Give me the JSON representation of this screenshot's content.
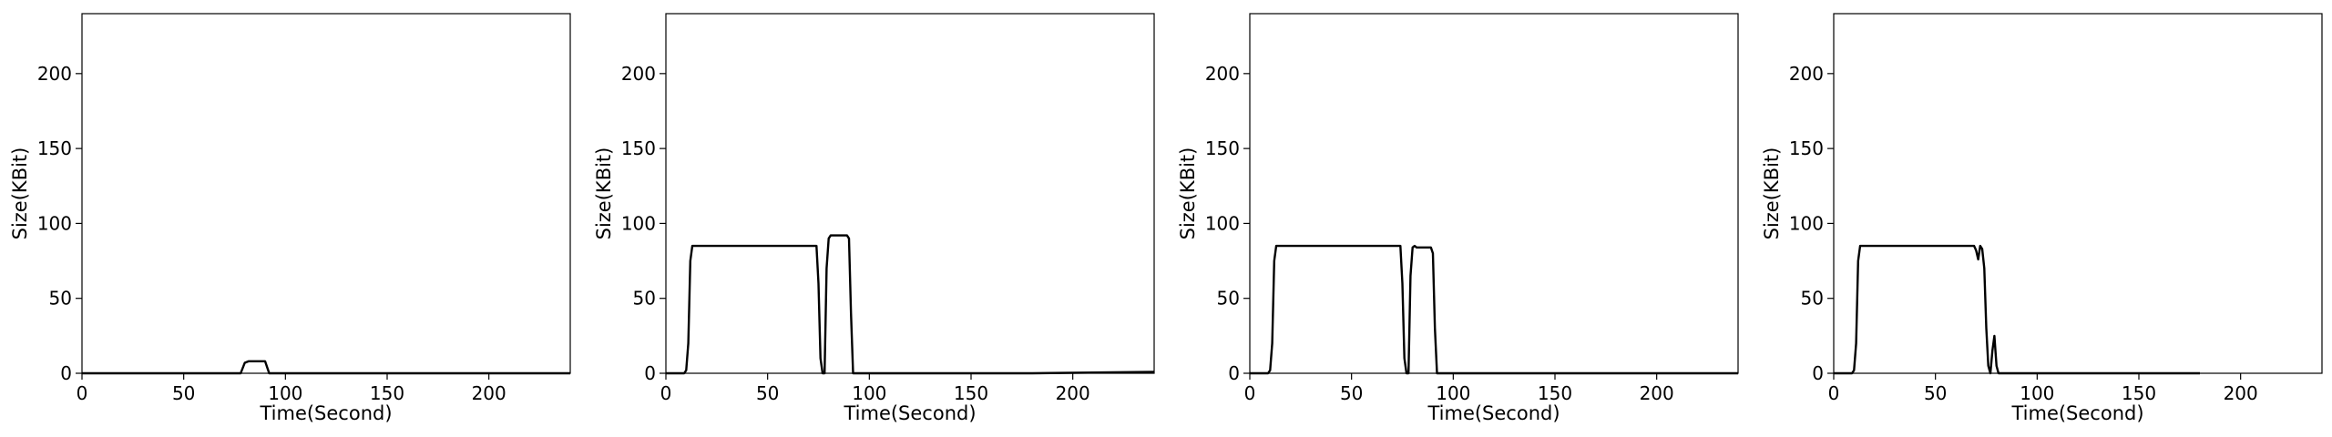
{
  "chart_data": [
    {
      "type": "line",
      "xlabel": "Time(Second)",
      "ylabel": "Size(KBit)",
      "xlim": [
        0,
        240
      ],
      "ylim": [
        0,
        240
      ],
      "xticks": [
        0,
        50,
        100,
        150,
        200
      ],
      "yticks": [
        0,
        50,
        100,
        150,
        200
      ],
      "grid": false,
      "series": [
        {
          "x": [
            0,
            78,
            80,
            82,
            90,
            92,
            240
          ],
          "y": [
            0,
            0,
            7,
            8,
            8,
            0,
            0
          ]
        }
      ]
    },
    {
      "type": "line",
      "xlabel": "Time(Second)",
      "ylabel": "Size(KBit)",
      "xlim": [
        0,
        240
      ],
      "ylim": [
        0,
        240
      ],
      "xticks": [
        0,
        50,
        100,
        150,
        200
      ],
      "yticks": [
        0,
        50,
        100,
        150,
        200
      ],
      "grid": false,
      "series": [
        {
          "x": [
            0,
            9,
            10,
            11,
            12,
            13,
            74,
            75,
            76,
            77,
            78,
            79,
            80,
            81,
            82,
            89,
            90,
            91,
            92,
            93,
            180,
            240
          ],
          "y": [
            0,
            0,
            2,
            20,
            75,
            85,
            85,
            60,
            10,
            0,
            0,
            70,
            90,
            92,
            92,
            92,
            90,
            40,
            0,
            0,
            0,
            1
          ]
        }
      ]
    },
    {
      "type": "line",
      "xlabel": "Time(Second)",
      "ylabel": "Size(KBit)",
      "xlim": [
        0,
        240
      ],
      "ylim": [
        0,
        240
      ],
      "xticks": [
        0,
        50,
        100,
        150,
        200
      ],
      "yticks": [
        0,
        50,
        100,
        150,
        200
      ],
      "grid": false,
      "series": [
        {
          "x": [
            0,
            9,
            10,
            11,
            12,
            13,
            74,
            75,
            76,
            77,
            78,
            79,
            80,
            81,
            82,
            89,
            90,
            91,
            92,
            93,
            240
          ],
          "y": [
            0,
            0,
            2,
            20,
            75,
            85,
            85,
            60,
            10,
            0,
            0,
            65,
            84,
            85,
            84,
            84,
            80,
            30,
            0,
            0,
            0
          ]
        }
      ]
    },
    {
      "type": "line",
      "xlabel": "Time(Second)",
      "ylabel": "Size(KBit)",
      "xlim": [
        0,
        240
      ],
      "ylim": [
        0,
        240
      ],
      "xticks": [
        0,
        50,
        100,
        150,
        200
      ],
      "yticks": [
        0,
        50,
        100,
        150,
        200
      ],
      "grid": false,
      "series": [
        {
          "x": [
            0,
            9,
            10,
            11,
            12,
            13,
            69,
            70,
            71,
            72,
            73,
            74,
            75,
            76,
            77,
            78,
            79,
            80,
            81,
            82,
            180
          ],
          "y": [
            0,
            0,
            2,
            20,
            75,
            85,
            85,
            82,
            76,
            85,
            83,
            70,
            30,
            5,
            0,
            15,
            25,
            5,
            0,
            0,
            0
          ]
        }
      ]
    }
  ]
}
